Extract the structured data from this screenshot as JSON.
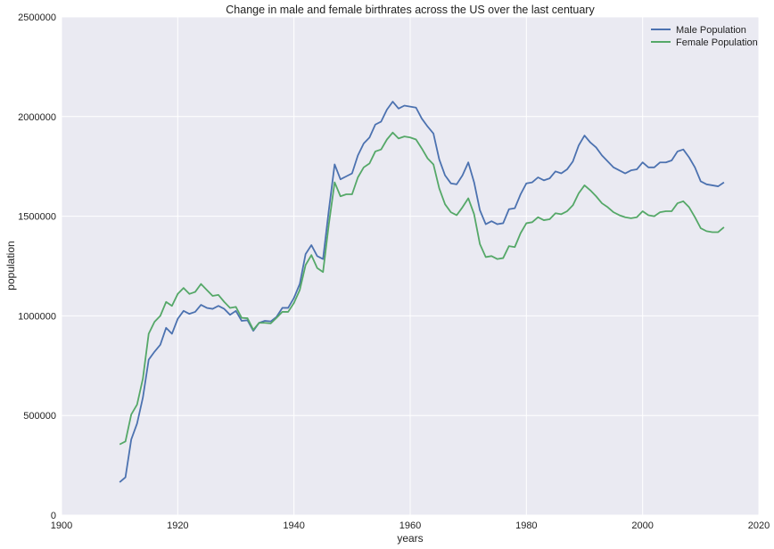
{
  "chart_data": {
    "type": "line",
    "title": "Change in male and female birthrates across the US over the last centuary",
    "xlabel": "years",
    "ylabel": "population",
    "xlim": [
      1900,
      2020
    ],
    "ylim": [
      0,
      2500000
    ],
    "xticks": [
      1900,
      1920,
      1940,
      1960,
      1980,
      2000,
      2020
    ],
    "yticks": [
      0,
      500000,
      1000000,
      1500000,
      2000000,
      2500000
    ],
    "grid": true,
    "legend_position": "top-right",
    "x": [
      1910,
      1911,
      1912,
      1913,
      1914,
      1915,
      1916,
      1917,
      1918,
      1919,
      1920,
      1921,
      1922,
      1923,
      1924,
      1925,
      1926,
      1927,
      1928,
      1929,
      1930,
      1931,
      1932,
      1933,
      1934,
      1935,
      1936,
      1937,
      1938,
      1939,
      1940,
      1941,
      1942,
      1943,
      1944,
      1945,
      1946,
      1947,
      1948,
      1949,
      1950,
      1951,
      1952,
      1953,
      1954,
      1955,
      1956,
      1957,
      1958,
      1959,
      1960,
      1961,
      1962,
      1963,
      1964,
      1965,
      1966,
      1967,
      1968,
      1969,
      1970,
      1971,
      1972,
      1973,
      1974,
      1975,
      1976,
      1977,
      1978,
      1979,
      1980,
      1981,
      1982,
      1983,
      1984,
      1985,
      1986,
      1987,
      1988,
      1989,
      1990,
      1991,
      1992,
      1993,
      1994,
      1995,
      1996,
      1997,
      1998,
      1999,
      2000,
      2001,
      2002,
      2003,
      2004,
      2005,
      2006,
      2007,
      2008,
      2009,
      2010,
      2011,
      2012,
      2013,
      2014
    ],
    "series": [
      {
        "name": "Male Population",
        "color": "#4c72b0",
        "values": [
          165000,
          190000,
          380000,
          460000,
          590000,
          780000,
          820000,
          855000,
          940000,
          910000,
          985000,
          1025000,
          1010000,
          1020000,
          1055000,
          1040000,
          1035000,
          1050000,
          1035000,
          1005000,
          1025000,
          975000,
          978000,
          925000,
          965000,
          975000,
          972000,
          995000,
          1040000,
          1040000,
          1090000,
          1160000,
          1310000,
          1355000,
          1300000,
          1285000,
          1530000,
          1760000,
          1685000,
          1700000,
          1715000,
          1805000,
          1865000,
          1895000,
          1960000,
          1975000,
          2035000,
          2075000,
          2040000,
          2055000,
          2050000,
          2045000,
          1990000,
          1950000,
          1915000,
          1785000,
          1705000,
          1665000,
          1660000,
          1705000,
          1770000,
          1670000,
          1530000,
          1460000,
          1475000,
          1460000,
          1465000,
          1535000,
          1540000,
          1610000,
          1665000,
          1670000,
          1695000,
          1680000,
          1690000,
          1725000,
          1715000,
          1735000,
          1775000,
          1855000,
          1905000,
          1870000,
          1845000,
          1805000,
          1775000,
          1745000,
          1730000,
          1715000,
          1730000,
          1735000,
          1770000,
          1745000,
          1745000,
          1770000,
          1770000,
          1780000,
          1825000,
          1835000,
          1795000,
          1745000,
          1675000,
          1660000,
          1655000,
          1650000,
          1670000
        ]
      },
      {
        "name": "Female Population",
        "color": "#55a868",
        "values": [
          355000,
          370000,
          505000,
          555000,
          685000,
          910000,
          970000,
          1000000,
          1070000,
          1050000,
          1110000,
          1140000,
          1110000,
          1120000,
          1160000,
          1130000,
          1100000,
          1105000,
          1070000,
          1040000,
          1045000,
          990000,
          988000,
          930000,
          965000,
          965000,
          962000,
          990000,
          1020000,
          1020000,
          1065000,
          1130000,
          1255000,
          1305000,
          1240000,
          1220000,
          1460000,
          1670000,
          1600000,
          1610000,
          1610000,
          1695000,
          1745000,
          1765000,
          1825000,
          1835000,
          1885000,
          1920000,
          1890000,
          1900000,
          1895000,
          1885000,
          1840000,
          1790000,
          1760000,
          1640000,
          1560000,
          1520000,
          1505000,
          1545000,
          1590000,
          1510000,
          1360000,
          1295000,
          1300000,
          1285000,
          1290000,
          1350000,
          1345000,
          1415000,
          1465000,
          1470000,
          1495000,
          1480000,
          1485000,
          1515000,
          1510000,
          1525000,
          1555000,
          1615000,
          1655000,
          1630000,
          1600000,
          1565000,
          1545000,
          1520000,
          1505000,
          1495000,
          1490000,
          1495000,
          1525000,
          1505000,
          1500000,
          1520000,
          1525000,
          1525000,
          1565000,
          1575000,
          1545000,
          1495000,
          1440000,
          1425000,
          1420000,
          1420000,
          1445000
        ]
      }
    ]
  }
}
